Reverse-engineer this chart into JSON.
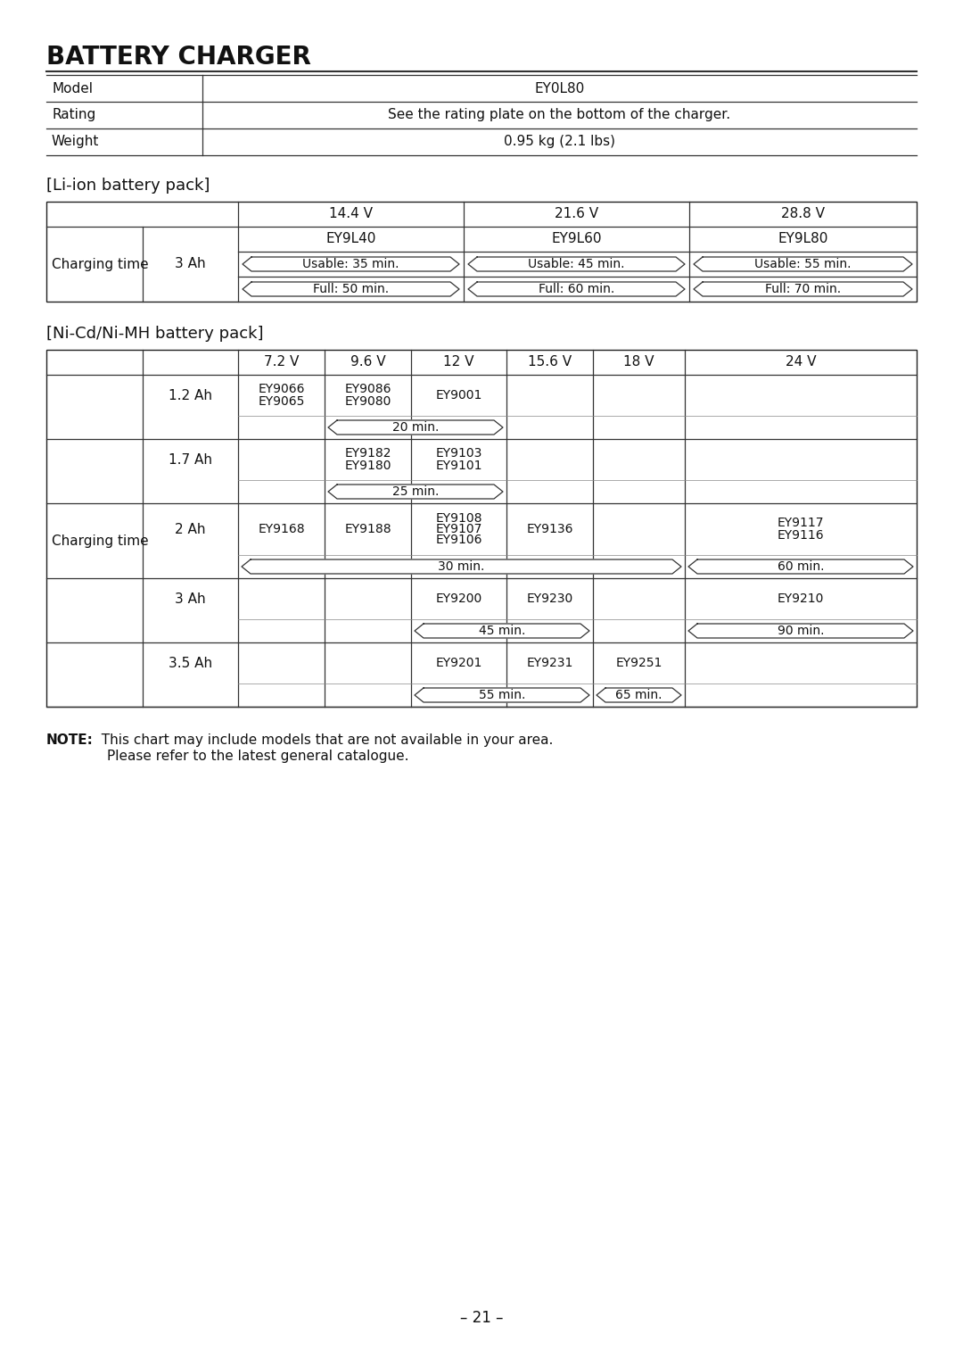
{
  "title": "BATTERY CHARGER",
  "bg_color": "#ffffff",
  "page_number": "21",
  "charger_rows": [
    [
      "Model",
      "EY0L80"
    ],
    [
      "Rating",
      "See the rating plate on the bottom of the charger."
    ],
    [
      "Weight",
      "0.95 kg (2.1 lbs)"
    ]
  ],
  "liion_title": "[Li-ion battery pack]",
  "nicd_title": "[Ni-Cd/Ni-MH battery pack]",
  "note_bold": "NOTE:",
  "note_line1": "  This chart may include models that are not available in your area.",
  "note_line2": "Please refer to the latest general catalogue.",
  "liion_voltages": [
    "14.4 V",
    "21.6 V",
    "28.8 V"
  ],
  "liion_models": [
    "EY9L40",
    "EY9L60",
    "EY9L80"
  ],
  "liion_usable": [
    "Usable: 35 min.",
    "Usable: 45 min.",
    "Usable: 55 min."
  ],
  "liion_full": [
    "Full: 50 min.",
    "Full: 60 min.",
    "Full: 70 min."
  ],
  "nicd_voltages": [
    "7.2 V",
    "9.6 V",
    "12 V",
    "15.6 V",
    "18 V",
    "24 V"
  ]
}
